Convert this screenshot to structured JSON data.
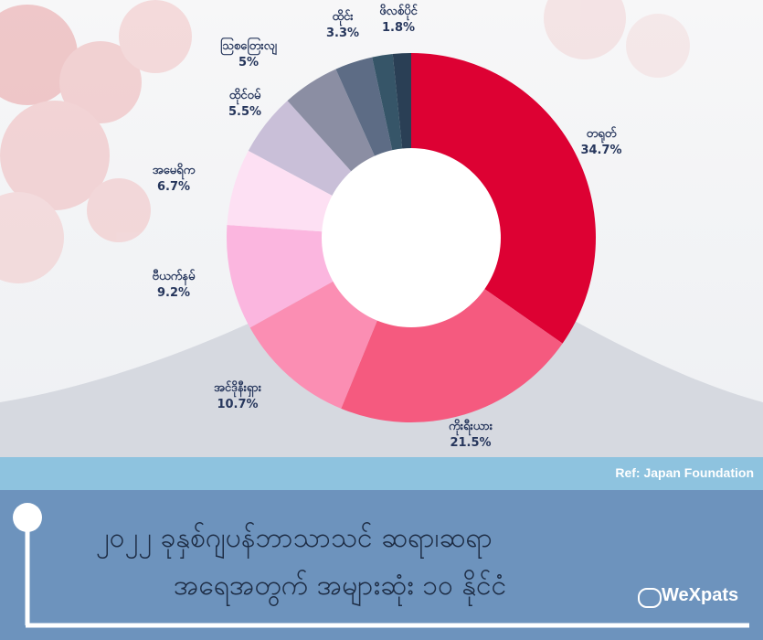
{
  "footer": {
    "ref": "Ref: Japan Foundation",
    "title_line1": "၂၀၂၂ ခုနှစ်ဂျပန်ဘာသာသင် ဆရာ၊ဆရာ",
    "title_line2": "အရေအတွက် အများဆုံး ၁၀ နိုင်ငံ",
    "logo": "WeXpats"
  },
  "colors": {
    "accent": "#dd0133",
    "band_light": "#8ec3df",
    "band_dark": "#6d93bd",
    "label_text": "#26365c"
  },
  "chart_data": {
    "type": "pie",
    "donut": true,
    "categories": [
      "တရုတ်",
      "ကိုးရီးယား",
      "အင်ဒိုနီးရှား",
      "ဗီယက်နမ်",
      "အမေရိက",
      "ထိုင်ဝမ်",
      "ဩစတြေးလျ",
      "ထိုင်း",
      "ဖိလစ်ပိုင်",
      ""
    ],
    "values": [
      34.7,
      21.5,
      10.7,
      9.2,
      6.7,
      5.5,
      5.0,
      3.3,
      1.8,
      1.6
    ],
    "labels": [
      "34.7%",
      "21.5%",
      "10.7%",
      "9.2%",
      "6.7%",
      "5.5%",
      "5%",
      "3.3%",
      "1.8%",
      ""
    ],
    "colors": [
      "#dd0133",
      "#f55a7f",
      "#fb8eb3",
      "#fbb6df",
      "#fde0f3",
      "#c9bfd8",
      "#8b8ea3",
      "#5d6c85",
      "#365568",
      "#2a3f55"
    ]
  }
}
